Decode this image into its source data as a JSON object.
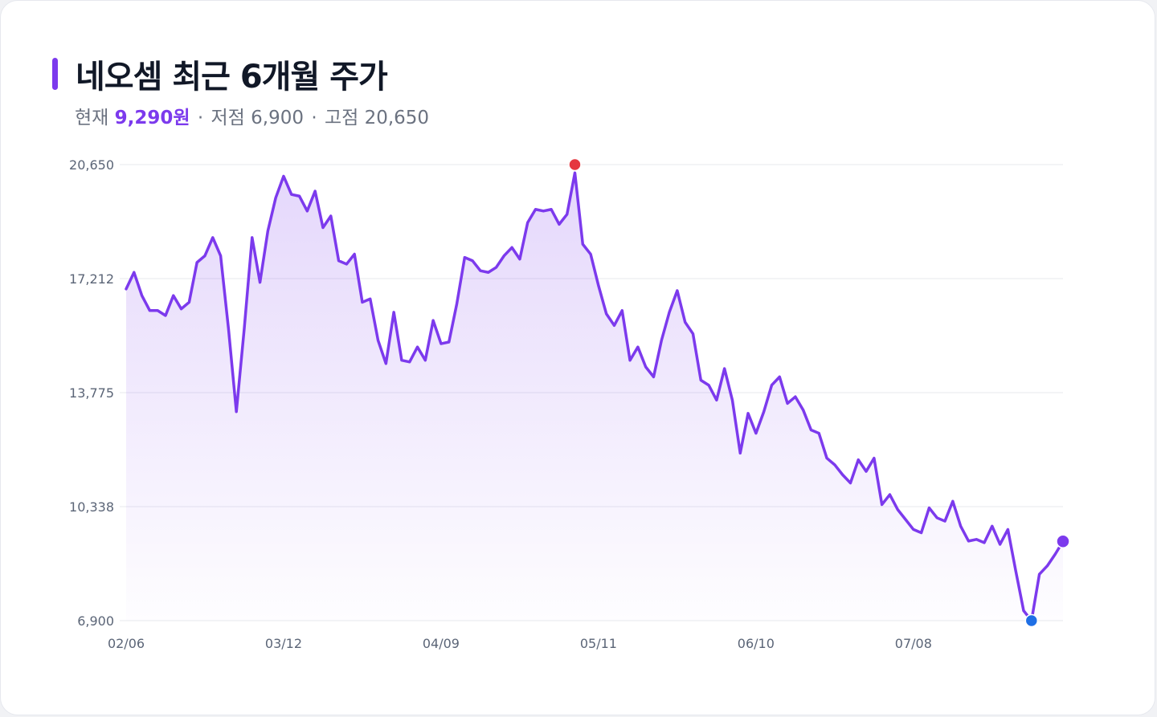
{
  "title": "네오셈 최근 6개월 주가",
  "subtitle": {
    "current_label": "현재",
    "current_value": "9,290원",
    "separator": "·",
    "low_label": "저점",
    "low_value": "6,900",
    "high_label": "고점",
    "high_value": "20,650"
  },
  "colors": {
    "line": "#7c3aed",
    "high_marker": "#e5373f",
    "low_marker": "#1f6fe5",
    "current_marker": "#7c3aed",
    "grid": "#e7e8ee"
  },
  "chart_data": {
    "type": "line",
    "title": "네오셈 최근 6개월 주가",
    "xlabel": "",
    "ylabel": "",
    "ylim": [
      6900,
      20650
    ],
    "y_ticks": [
      {
        "value": 20650,
        "label": "20,650"
      },
      {
        "value": 17212,
        "label": "17,212"
      },
      {
        "value": 13775,
        "label": "13,775"
      },
      {
        "value": 10338,
        "label": "10,338"
      },
      {
        "value": 6900,
        "label": "6,900"
      }
    ],
    "x_ticks": [
      {
        "index": 0,
        "label": "02/06"
      },
      {
        "index": 20,
        "label": "03/12"
      },
      {
        "index": 40,
        "label": "04/09"
      },
      {
        "index": 60,
        "label": "05/11"
      },
      {
        "index": 80,
        "label": "06/10"
      },
      {
        "index": 100,
        "label": "07/08"
      }
    ],
    "grid": true,
    "area_fill": true,
    "series": [
      {
        "values": [
          16900,
          17400,
          16700,
          16250,
          16250,
          16100,
          16700,
          16300,
          16500,
          17700,
          17900,
          18450,
          17900,
          15700,
          13200,
          15700,
          18450,
          17100,
          18650,
          19650,
          20300,
          19750,
          19700,
          19250,
          19850,
          18750,
          19100,
          17750,
          17650,
          17950,
          16500,
          16600,
          15350,
          14650,
          16200,
          14750,
          14700,
          15150,
          14750,
          15950,
          15250,
          15300,
          16450,
          17850,
          17750,
          17450,
          17400,
          17550,
          17900,
          18150,
          17800,
          18900,
          19300,
          19250,
          19300,
          18850,
          19150,
          20400,
          18250,
          17950,
          17000,
          16150,
          15800,
          16250,
          14750,
          15150,
          14550,
          14250,
          15350,
          16200,
          16850,
          15900,
          15550,
          14150,
          14000,
          13550,
          14500,
          13550,
          11950,
          13150,
          12550,
          13200,
          14000,
          14250,
          13450,
          13650,
          13250,
          12650,
          12550,
          11800,
          11600,
          11300,
          11050,
          11750,
          11400,
          11800,
          10400,
          10700,
          10250,
          9950,
          9650,
          9550,
          10300,
          10000,
          9900,
          10500,
          9750,
          9300,
          9350,
          9250,
          9750,
          9200,
          9650,
          8400,
          7200,
          6900,
          8300,
          8550,
          8900,
          9290
        ]
      }
    ],
    "annotations": [
      {
        "type": "high",
        "index": 57,
        "value": 20650
      },
      {
        "type": "low",
        "index": 115,
        "value": 6900
      },
      {
        "type": "current",
        "index": 119,
        "value": 9290
      }
    ]
  }
}
